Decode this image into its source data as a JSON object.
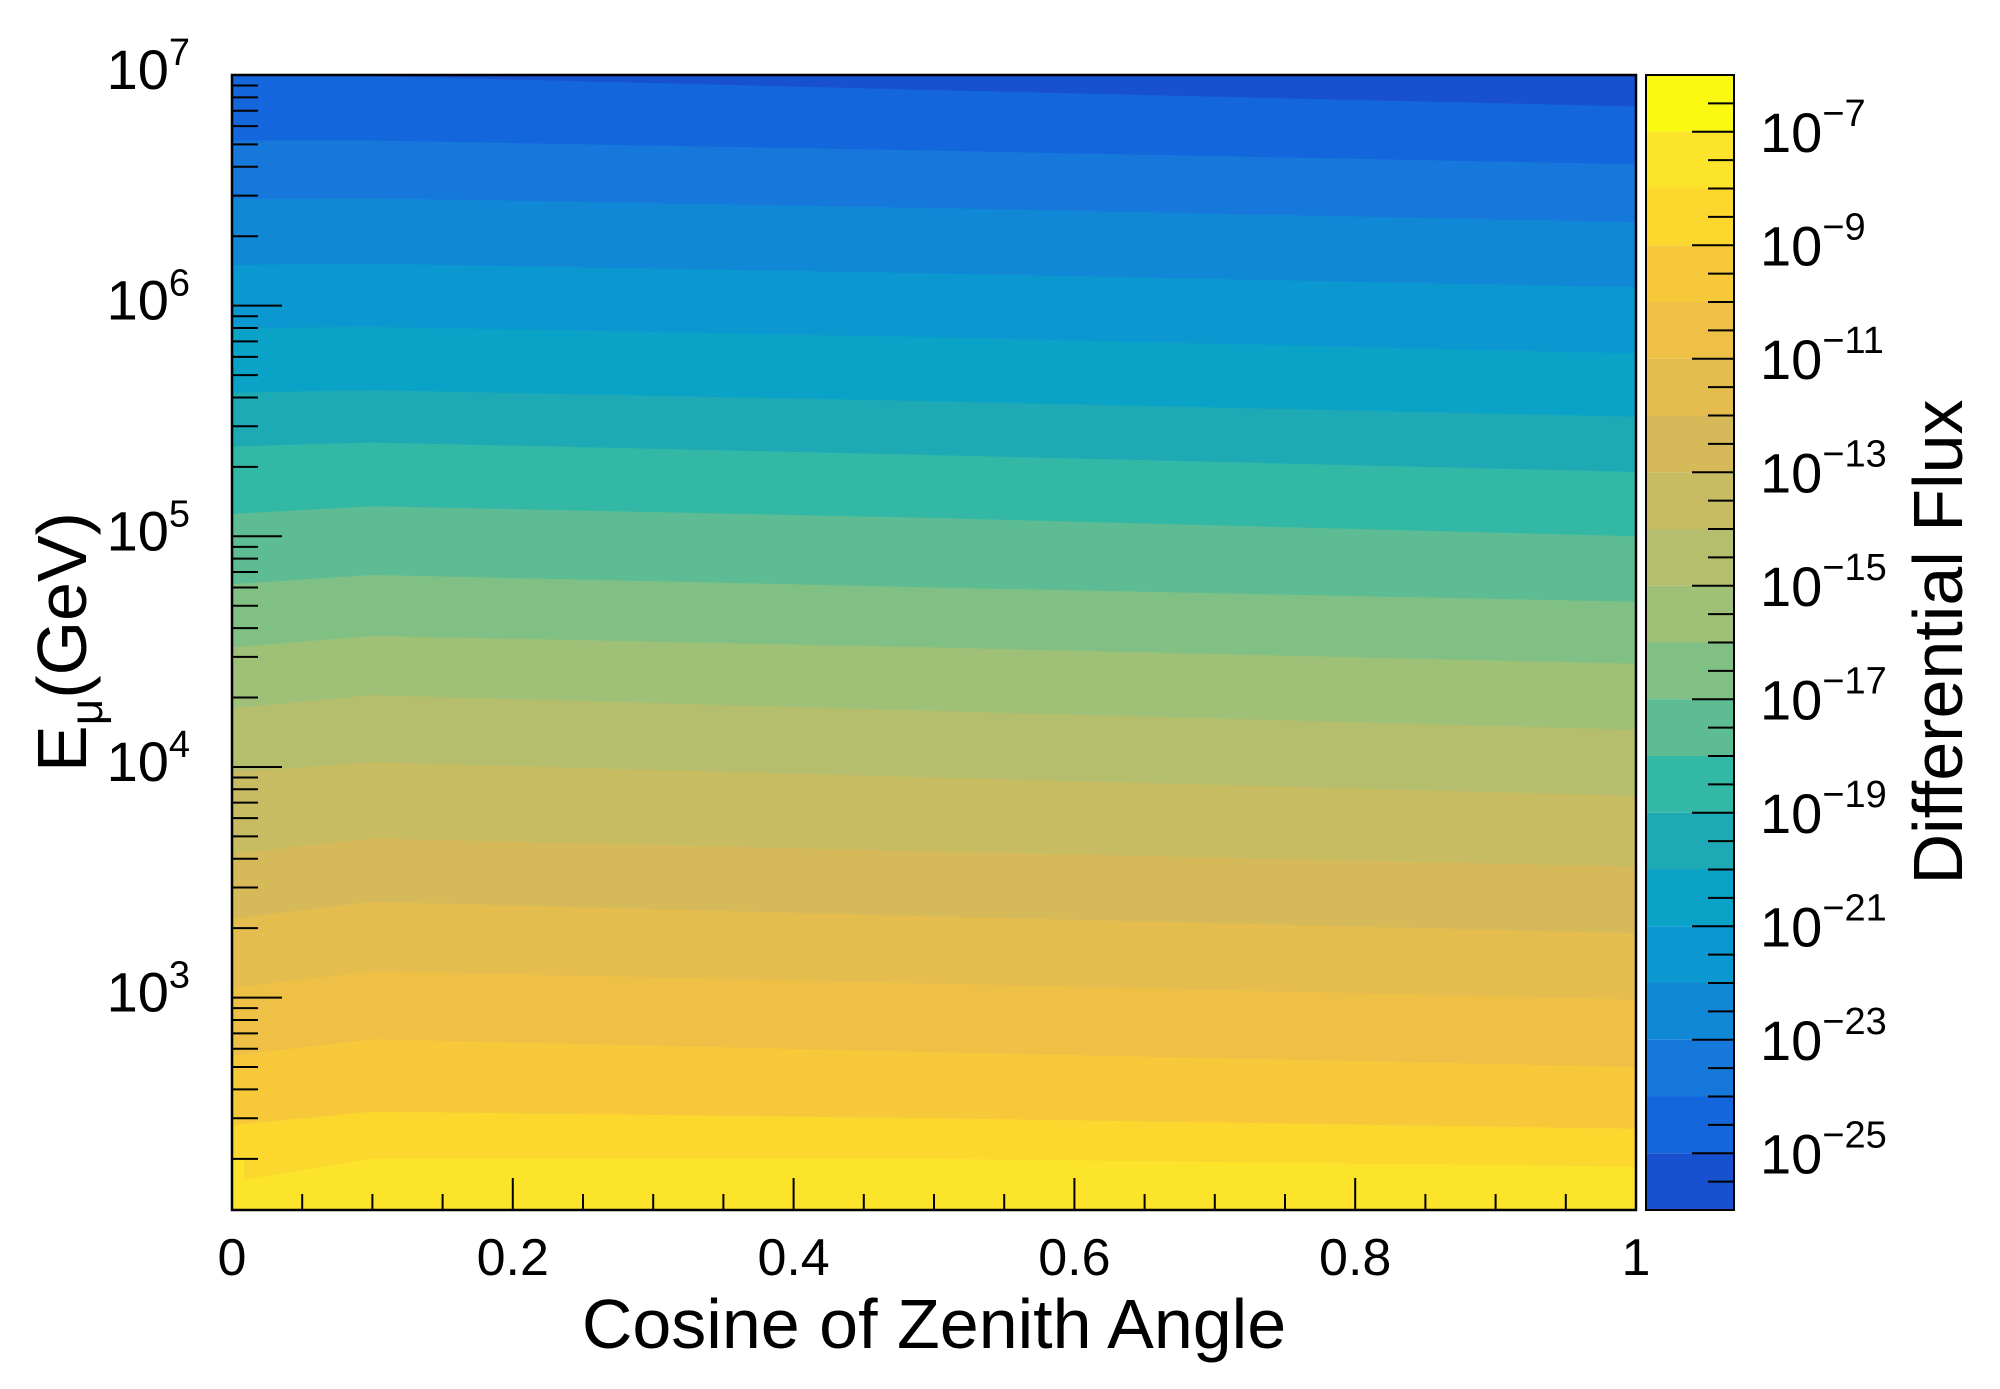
{
  "chart_data": {
    "type": "heatmap",
    "xlabel": "Cosine of Zenith Angle",
    "ylabel_main": "E",
    "ylabel_sub": "μ",
    "ylabel_unit": "(GeV)",
    "colorbar_label": "Differential Flux",
    "xlim": [
      0,
      1
    ],
    "ylim": [
      120,
      10000000
    ],
    "y_scale": "log",
    "x_ticks": [
      "0",
      "0.2",
      "0.4",
      "0.6",
      "0.8",
      "1"
    ],
    "y_ticks": [
      {
        "base": "10",
        "exp": "3",
        "value": 1000
      },
      {
        "base": "10",
        "exp": "4",
        "value": 10000
      },
      {
        "base": "10",
        "exp": "5",
        "value": 100000
      },
      {
        "base": "10",
        "exp": "6",
        "value": 1000000
      },
      {
        "base": "10",
        "exp": "7",
        "value": 10000000
      }
    ],
    "z_scale": "log",
    "zlim": [
      1e-26,
      1e-06
    ],
    "colorbar_ticks": [
      {
        "base": "10",
        "exp": "−7",
        "value": -7
      },
      {
        "base": "10",
        "exp": "−9",
        "value": -9
      },
      {
        "base": "10",
        "exp": "−11",
        "value": -11
      },
      {
        "base": "10",
        "exp": "−13",
        "value": -13
      },
      {
        "base": "10",
        "exp": "−15",
        "value": -15
      },
      {
        "base": "10",
        "exp": "−17",
        "value": -17
      },
      {
        "base": "10",
        "exp": "−19",
        "value": -19
      },
      {
        "base": "10",
        "exp": "−21",
        "value": -21
      },
      {
        "base": "10",
        "exp": "−23",
        "value": -23
      },
      {
        "base": "10",
        "exp": "−25",
        "value": -25
      }
    ],
    "contour_levels_log10": [
      -7,
      -8,
      -9,
      -10,
      -11,
      -12,
      -13,
      -14,
      -15,
      -16,
      -17,
      -18,
      -19,
      -20,
      -21,
      -22,
      -23,
      -24,
      -25
    ],
    "band_colors": [
      "#f9f911",
      "#fbe42a",
      "#fcd72e",
      "#f7c93a",
      "#efc046",
      "#e4bd4e",
      "#d6ba59",
      "#c8bc63",
      "#b4be6c",
      "#9ec077",
      "#80c084",
      "#5dbc93",
      "#34b8a6",
      "#1eaab5",
      "#0ba2c7",
      "#0b98d0",
      "#1088d6",
      "#1678db",
      "#1466dc",
      "#1851d0",
      "#2c3ea8"
    ],
    "contour_energy_gev": {
      "cos_zenith": [
        0,
        0.1,
        0.5,
        1
      ],
      "lines": [
        {
          "log10_flux": -7,
          "energy": [
            160,
            200,
            200,
            185
          ]
        },
        {
          "log10_flux": -8,
          "energy": [
            280,
            320,
            300,
            270
          ]
        },
        {
          "log10_flux": -9,
          "energy": [
            560,
            660,
            580,
            500
          ]
        },
        {
          "log10_flux": -10,
          "energy": [
            1100,
            1300,
            1150,
            980
          ]
        },
        {
          "log10_flux": -11,
          "energy": [
            2200,
            2600,
            2250,
            1900
          ]
        },
        {
          "log10_flux": -12,
          "energy": [
            4200,
            4900,
            4300,
            3700
          ]
        },
        {
          "log10_flux": -13,
          "energy": [
            9500,
            10500,
            9000,
            7500
          ]
        },
        {
          "log10_flux": -14,
          "energy": [
            18000,
            20500,
            17500,
            14500
          ]
        },
        {
          "log10_flux": -15,
          "energy": [
            33000,
            37000,
            33000,
            28000
          ]
        },
        {
          "log10_flux": -16,
          "energy": [
            62000,
            68000,
            60000,
            52000
          ]
        },
        {
          "log10_flux": -17,
          "energy": [
            125000,
            135000,
            120000,
            100000
          ]
        },
        {
          "log10_flux": -18,
          "energy": [
            245000,
            255000,
            225000,
            190000
          ]
        },
        {
          "log10_flux": -19,
          "energy": [
            420000,
            430000,
            385000,
            330000
          ]
        },
        {
          "log10_flux": -20,
          "energy": [
            800000,
            810000,
            730000,
            620000
          ]
        },
        {
          "log10_flux": -21,
          "energy": [
            1500000,
            1520000,
            1380000,
            1200000
          ]
        },
        {
          "log10_flux": -22,
          "energy": [
            2900000,
            2920000,
            2650000,
            2300000
          ]
        },
        {
          "log10_flux": -23,
          "energy": [
            5200000,
            5200000,
            4700000,
            4100000
          ]
        },
        {
          "log10_flux": -24,
          "energy": [
            9900000,
            9900000,
            8600000,
            7300000
          ]
        }
      ]
    }
  }
}
